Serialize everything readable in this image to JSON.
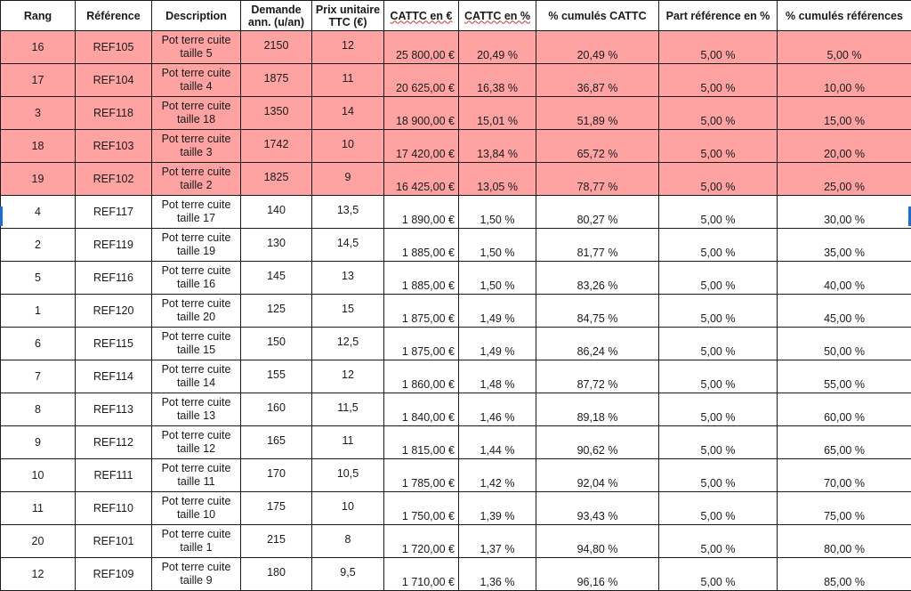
{
  "headers": {
    "rang": "Rang",
    "reference": "Référence",
    "description": "Description",
    "demande": "Demande ann. (u/an)",
    "prix": "Prix unitaire TTC (€)",
    "cattc_eur": "CATTC en €",
    "cattc_pct": "CATTC en %",
    "cum_cattc": "% cumulés CATTC",
    "part_ref": "Part référence en %",
    "cum_ref": "% cumulés références"
  },
  "highlight_color": "#ffa2a2",
  "rows": [
    {
      "rang": "16",
      "ref": "REF105",
      "desc1": "Pot terre cuite",
      "desc2": "taille 5",
      "demande": "2150",
      "prix": "12",
      "ca": "25 800,00 €",
      "pct": "20,49 %",
      "cum": "20,49 %",
      "part": "5,00 %",
      "cumref": "5,00 %",
      "hl": true
    },
    {
      "rang": "17",
      "ref": "REF104",
      "desc1": "Pot terre cuite",
      "desc2": "taille 4",
      "demande": "1875",
      "prix": "11",
      "ca": "20 625,00 €",
      "pct": "16,38 %",
      "cum": "36,87 %",
      "part": "5,00 %",
      "cumref": "10,00 %",
      "hl": true
    },
    {
      "rang": "3",
      "ref": "REF118",
      "desc1": "Pot terre cuite",
      "desc2": "taille 18",
      "demande": "1350",
      "prix": "14",
      "ca": "18 900,00 €",
      "pct": "15,01 %",
      "cum": "51,89 %",
      "part": "5,00 %",
      "cumref": "15,00 %",
      "hl": true
    },
    {
      "rang": "18",
      "ref": "REF103",
      "desc1": "Pot terre cuite",
      "desc2": "taille 3",
      "demande": "1742",
      "prix": "10",
      "ca": "17 420,00 €",
      "pct": "13,84 %",
      "cum": "65,72 %",
      "part": "5,00 %",
      "cumref": "20,00 %",
      "hl": true
    },
    {
      "rang": "19",
      "ref": "REF102",
      "desc1": "Pot terre cuite",
      "desc2": "taille 2",
      "demande": "1825",
      "prix": "9",
      "ca": "16 425,00 €",
      "pct": "13,05 %",
      "cum": "78,77 %",
      "part": "5,00 %",
      "cumref": "25,00 %",
      "hl": true
    },
    {
      "rang": "4",
      "ref": "REF117",
      "desc1": "Pot terre cuite",
      "desc2": "taille 17",
      "demande": "140",
      "prix": "13,5",
      "ca": "1 890,00 €",
      "pct": "1,50 %",
      "cum": "80,27 %",
      "part": "5,00 %",
      "cumref": "30,00 %",
      "hl": false
    },
    {
      "rang": "2",
      "ref": "REF119",
      "desc1": "Pot terre cuite",
      "desc2": "taille 19",
      "demande": "130",
      "prix": "14,5",
      "ca": "1 885,00 €",
      "pct": "1,50 %",
      "cum": "81,77 %",
      "part": "5,00 %",
      "cumref": "35,00 %",
      "hl": false
    },
    {
      "rang": "5",
      "ref": "REF116",
      "desc1": "Pot terre cuite",
      "desc2": "taille 16",
      "demande": "145",
      "prix": "13",
      "ca": "1 885,00 €",
      "pct": "1,50 %",
      "cum": "83,26 %",
      "part": "5,00 %",
      "cumref": "40,00 %",
      "hl": false
    },
    {
      "rang": "1",
      "ref": "REF120",
      "desc1": "Pot terre cuite",
      "desc2": "taille 20",
      "demande": "125",
      "prix": "15",
      "ca": "1 875,00 €",
      "pct": "1,49 %",
      "cum": "84,75 %",
      "part": "5,00 %",
      "cumref": "45,00 %",
      "hl": false
    },
    {
      "rang": "6",
      "ref": "REF115",
      "desc1": "Pot terre cuite",
      "desc2": "taille 15",
      "demande": "150",
      "prix": "12,5",
      "ca": "1 875,00 €",
      "pct": "1,49 %",
      "cum": "86,24 %",
      "part": "5,00 %",
      "cumref": "50,00 %",
      "hl": false
    },
    {
      "rang": "7",
      "ref": "REF114",
      "desc1": "Pot terre cuite",
      "desc2": "taille 14",
      "demande": "155",
      "prix": "12",
      "ca": "1 860,00 €",
      "pct": "1,48 %",
      "cum": "87,72 %",
      "part": "5,00 %",
      "cumref": "55,00 %",
      "hl": false
    },
    {
      "rang": "8",
      "ref": "REF113",
      "desc1": "Pot terre cuite",
      "desc2": "taille 13",
      "demande": "160",
      "prix": "11,5",
      "ca": "1 840,00 €",
      "pct": "1,46 %",
      "cum": "89,18 %",
      "part": "5,00 %",
      "cumref": "60,00 %",
      "hl": false
    },
    {
      "rang": "9",
      "ref": "REF112",
      "desc1": "Pot terre cuite",
      "desc2": "taille 12",
      "demande": "165",
      "prix": "11",
      "ca": "1 815,00 €",
      "pct": "1,44 %",
      "cum": "90,62 %",
      "part": "5,00 %",
      "cumref": "65,00 %",
      "hl": false
    },
    {
      "rang": "10",
      "ref": "REF111",
      "desc1": "Pot terre cuite",
      "desc2": "taille 11",
      "demande": "170",
      "prix": "10,5",
      "ca": "1 785,00 €",
      "pct": "1,42 %",
      "cum": "92,04 %",
      "part": "5,00 %",
      "cumref": "70,00 %",
      "hl": false
    },
    {
      "rang": "11",
      "ref": "REF110",
      "desc1": "Pot terre cuite",
      "desc2": "taille 10",
      "demande": "175",
      "prix": "10",
      "ca": "1 750,00 €",
      "pct": "1,39 %",
      "cum": "93,43 %",
      "part": "5,00 %",
      "cumref": "75,00 %",
      "hl": false
    },
    {
      "rang": "20",
      "ref": "REF101",
      "desc1": "Pot terre cuite",
      "desc2": "taille 1",
      "demande": "215",
      "prix": "8",
      "ca": "1 720,00 €",
      "pct": "1,37 %",
      "cum": "94,80 %",
      "part": "5,00 %",
      "cumref": "80,00 %",
      "hl": false
    },
    {
      "rang": "12",
      "ref": "REF109",
      "desc1": "Pot terre cuite",
      "desc2": "taille 9",
      "demande": "180",
      "prix": "9,5",
      "ca": "1 710,00 €",
      "pct": "1,36 %",
      "cum": "96,16 %",
      "part": "5,00 %",
      "cumref": "85,00 %",
      "hl": false
    }
  ]
}
